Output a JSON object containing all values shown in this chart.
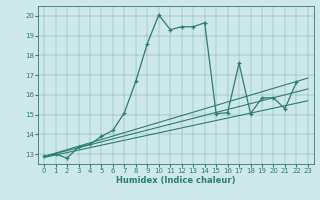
{
  "xlabel": "Humidex (Indice chaleur)",
  "bg_color": "#cce8e8",
  "line_color": "#2e7d6e",
  "xlim": [
    -0.5,
    23.5
  ],
  "ylim": [
    12.5,
    20.5
  ],
  "yticks": [
    13,
    14,
    15,
    16,
    17,
    18,
    19,
    20
  ],
  "xticks": [
    0,
    1,
    2,
    3,
    4,
    5,
    6,
    7,
    8,
    9,
    10,
    11,
    12,
    13,
    14,
    15,
    16,
    17,
    18,
    19,
    20,
    21,
    22,
    23
  ],
  "curve1_x": [
    0,
    1,
    2,
    3,
    4,
    5,
    6,
    7,
    8,
    9,
    10,
    11,
    12,
    13,
    14,
    15,
    16,
    17,
    18,
    19,
    20,
    21,
    22
  ],
  "curve1_y": [
    12.9,
    13.0,
    12.8,
    13.35,
    13.5,
    13.9,
    14.2,
    15.1,
    16.7,
    18.6,
    20.05,
    19.3,
    19.45,
    19.45,
    19.65,
    15.05,
    15.1,
    17.6,
    15.05,
    15.85,
    15.85,
    15.3,
    16.65
  ],
  "line1_x": [
    0,
    23
  ],
  "line1_y": [
    12.88,
    16.85
  ],
  "line2_x": [
    0,
    23
  ],
  "line2_y": [
    12.88,
    16.3
  ],
  "line3_x": [
    0,
    23
  ],
  "line3_y": [
    12.83,
    15.7
  ]
}
